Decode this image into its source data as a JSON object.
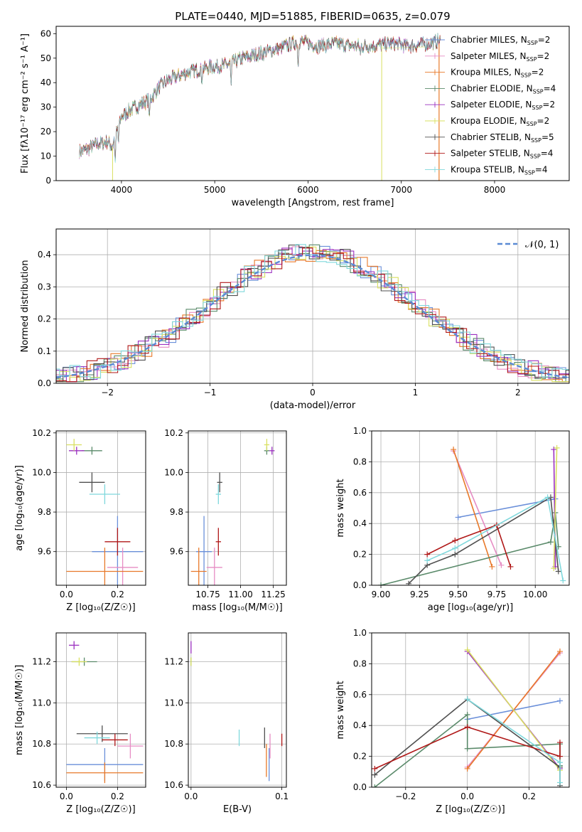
{
  "figure": {
    "title": "PLATE=0440, MJD=51885, FIBERID=0635, z=0.079"
  },
  "colors": {
    "Chabrier MILES": "#6a8fd9",
    "Salpeter MILES": "#e68cc4",
    "Kroupa MILES": "#e8792a",
    "Chabrier ELODIE": "#5a8a6a",
    "Salpeter ELODIE": "#9b30c0",
    "Kroupa ELODIE": "#d9e060",
    "Chabrier STELIB": "#505050",
    "Salpeter STELIB": "#b01818",
    "Kroupa STELIB": "#7fd8dc"
  },
  "chart_data": [
    {
      "id": "spectrum",
      "type": "line",
      "title": "PLATE=0440, MJD=51885, FIBERID=0635, z=0.079",
      "xlabel": "wavelength [Angstrom, rest frame]",
      "ylabel": "Flux [fλ10⁻¹⁷ erg cm⁻² s⁻¹ A⁻¹]",
      "xlim": [
        3300,
        8800
      ],
      "ylim": [
        0,
        63
      ],
      "xticks": [
        4000,
        5000,
        6000,
        7000,
        8000
      ],
      "yticks": [
        0,
        10,
        20,
        30,
        40,
        50,
        60
      ],
      "grid": false,
      "legend_position": "right",
      "spectrum_envelope": {
        "x": [
          3550,
          3650,
          3750,
          3850,
          3900,
          4000,
          4100,
          4200,
          4300,
          4400,
          4500,
          4700,
          4900,
          5100,
          5300,
          5500,
          5700,
          5900,
          6100,
          6300,
          6500,
          6700,
          6900,
          7100,
          7300,
          7400
        ],
        "y": [
          12,
          13,
          15,
          16,
          14,
          26,
          29,
          31,
          33,
          38,
          41,
          44,
          46,
          47,
          50,
          52,
          54,
          57,
          55,
          56,
          55,
          55,
          56,
          55,
          56,
          57
        ]
      },
      "legend": [
        {
          "label": "Chabrier MILES",
          "nssp": "2"
        },
        {
          "label": "Salpeter MILES",
          "nssp": "2"
        },
        {
          "label": "Kroupa MILES",
          "nssp": "2"
        },
        {
          "label": "Chabrier ELODIE",
          "nssp": "4"
        },
        {
          "label": "Salpeter ELODIE",
          "nssp": "2"
        },
        {
          "label": "Kroupa ELODIE",
          "nssp": "2"
        },
        {
          "label": "Chabrier STELIB",
          "nssp": "5"
        },
        {
          "label": "Salpeter STELIB",
          "nssp": "4"
        },
        {
          "label": "Kroupa STELIB",
          "nssp": "4"
        }
      ]
    },
    {
      "id": "residuals",
      "type": "line",
      "xlabel": "(data-model)/error",
      "ylabel": "Normed distribution",
      "xlim": [
        -2.5,
        2.5
      ],
      "ylim": [
        0,
        0.48
      ],
      "xticks": [
        -2,
        -1,
        0,
        1,
        2
      ],
      "yticks": [
        0.0,
        0.1,
        0.2,
        0.3,
        0.4
      ],
      "grid": true,
      "legend_position": "top-right",
      "gaussian_label": "𝒩(0, 1)"
    },
    {
      "id": "age_vs_Z",
      "type": "scatter",
      "xlabel": "Z [log₁₀(Z/Z☉)]",
      "ylabel": "age  [log₁₀(age/yr)]",
      "xlim": [
        -0.04,
        0.31
      ],
      "ylim": [
        9.43,
        10.21
      ],
      "xticks": [
        0.0,
        0.2
      ],
      "yticks": [
        9.6,
        9.8,
        10.0,
        10.2
      ],
      "grid": true,
      "points": [
        {
          "model": "Chabrier MILES",
          "x": 0.2,
          "xerr": 0.1,
          "y": 9.6,
          "yerr": 0.18
        },
        {
          "model": "Salpeter MILES",
          "x": 0.22,
          "xerr": 0.06,
          "y": 9.52,
          "yerr": 0.1
        },
        {
          "model": "Kroupa MILES",
          "x": 0.15,
          "xerr": 0.15,
          "y": 9.5,
          "yerr": 0.12
        },
        {
          "model": "Chabrier ELODIE",
          "x": 0.1,
          "xerr": 0.04,
          "y": 10.11,
          "yerr": 0.02
        },
        {
          "model": "Salpeter ELODIE",
          "x": 0.04,
          "xerr": 0.03,
          "y": 10.11,
          "yerr": 0.02
        },
        {
          "model": "Kroupa ELODIE",
          "x": 0.03,
          "xerr": 0.03,
          "y": 10.14,
          "yerr": 0.03
        },
        {
          "model": "Chabrier STELIB",
          "x": 0.1,
          "xerr": 0.05,
          "y": 9.95,
          "yerr": 0.05
        },
        {
          "model": "Salpeter STELIB",
          "x": 0.2,
          "xerr": 0.05,
          "y": 9.65,
          "yerr": 0.07
        },
        {
          "model": "Kroupa STELIB",
          "x": 0.15,
          "xerr": 0.06,
          "y": 9.89,
          "yerr": 0.05
        }
      ]
    },
    {
      "id": "age_vs_mass",
      "type": "scatter",
      "xlabel": "mass [log₁₀(M/M☉)]",
      "ylabel": "",
      "xlim": [
        10.6,
        11.35
      ],
      "ylim": [
        9.43,
        10.21
      ],
      "xticks": [
        10.75,
        11.0,
        11.25
      ],
      "yticks": [
        9.6,
        9.8,
        10.0,
        10.2
      ],
      "grid": true,
      "points": [
        {
          "model": "Chabrier MILES",
          "x": 10.72,
          "xerr": 0.06,
          "y": 9.6,
          "yerr": 0.18
        },
        {
          "model": "Salpeter MILES",
          "x": 10.8,
          "xerr": 0.06,
          "y": 9.52,
          "yerr": 0.1
        },
        {
          "model": "Kroupa MILES",
          "x": 10.68,
          "xerr": 0.06,
          "y": 9.5,
          "yerr": 0.12
        },
        {
          "model": "Chabrier ELODIE",
          "x": 11.2,
          "xerr": 0.02,
          "y": 10.11,
          "yerr": 0.02
        },
        {
          "model": "Salpeter ELODIE",
          "x": 11.24,
          "xerr": 0.02,
          "y": 10.11,
          "yerr": 0.02
        },
        {
          "model": "Kroupa ELODIE",
          "x": 11.2,
          "xerr": 0.02,
          "y": 10.14,
          "yerr": 0.03
        },
        {
          "model": "Chabrier STELIB",
          "x": 10.84,
          "xerr": 0.02,
          "y": 9.95,
          "yerr": 0.05
        },
        {
          "model": "Salpeter STELIB",
          "x": 10.83,
          "xerr": 0.02,
          "y": 9.65,
          "yerr": 0.07
        },
        {
          "model": "Kroupa STELIB",
          "x": 10.83,
          "xerr": 0.02,
          "y": 9.89,
          "yerr": 0.05
        }
      ]
    },
    {
      "id": "weight_vs_age",
      "type": "line",
      "xlabel": "age  [log₁₀(age/yr)]",
      "ylabel": "mass weight",
      "xlim": [
        8.94,
        10.22
      ],
      "ylim": [
        0,
        1
      ],
      "xticks": [
        9.0,
        9.25,
        9.5,
        9.75,
        10.0
      ],
      "yticks": [
        0.0,
        0.2,
        0.4,
        0.6,
        0.8,
        1.0
      ],
      "grid": true,
      "series": [
        {
          "model": "Chabrier MILES",
          "x": [
            9.5,
            10.13
          ],
          "y": [
            0.44,
            0.56
          ]
        },
        {
          "model": "Salpeter MILES",
          "x": [
            9.47,
            9.78
          ],
          "y": [
            0.87,
            0.13
          ]
        },
        {
          "model": "Kroupa MILES",
          "x": [
            9.47,
            9.72
          ],
          "y": [
            0.88,
            0.12
          ]
        },
        {
          "model": "Chabrier ELODIE",
          "x": [
            9.0,
            10.1,
            10.13,
            10.15
          ],
          "y": [
            0.0,
            0.28,
            0.47,
            0.25
          ]
        },
        {
          "model": "Salpeter ELODIE",
          "x": [
            10.12,
            10.13
          ],
          "y": [
            0.88,
            0.12
          ]
        },
        {
          "model": "Kroupa ELODIE",
          "x": [
            10.12,
            10.14
          ],
          "y": [
            0.11,
            0.89
          ]
        },
        {
          "model": "Chabrier STELIB",
          "x": [
            9.18,
            9.3,
            9.48,
            10.1,
            10.15
          ],
          "y": [
            0.01,
            0.13,
            0.2,
            0.57,
            0.09
          ]
        },
        {
          "model": "Salpeter STELIB",
          "x": [
            9.3,
            9.48,
            9.75,
            9.84
          ],
          "y": [
            0.2,
            0.29,
            0.39,
            0.12
          ]
        },
        {
          "model": "Kroupa STELIB",
          "x": [
            9.3,
            9.48,
            10.08,
            10.18
          ],
          "y": [
            0.16,
            0.24,
            0.57,
            0.03
          ]
        }
      ]
    },
    {
      "id": "mass_vs_Z",
      "type": "scatter",
      "xlabel": "Z [log₁₀(Z/Z☉)]",
      "ylabel": "mass [log₁₀(M/M☉)]",
      "xlim": [
        -0.04,
        0.31
      ],
      "ylim": [
        10.59,
        11.34
      ],
      "xticks": [
        0.0,
        0.2
      ],
      "yticks": [
        10.6,
        10.8,
        11.0,
        11.2
      ],
      "grid": true,
      "points": [
        {
          "model": "Chabrier MILES",
          "x": 0.15,
          "xerr": 0.15,
          "y": 10.7,
          "yerr": 0.08
        },
        {
          "model": "Salpeter MILES",
          "x": 0.25,
          "xerr": 0.05,
          "y": 10.79,
          "yerr": 0.06
        },
        {
          "model": "Kroupa MILES",
          "x": 0.15,
          "xerr": 0.15,
          "y": 10.66,
          "yerr": 0.05
        },
        {
          "model": "Chabrier ELODIE",
          "x": 0.07,
          "xerr": 0.05,
          "y": 11.2,
          "yerr": 0.02
        },
        {
          "model": "Salpeter ELODIE",
          "x": 0.03,
          "xerr": 0.02,
          "y": 11.28,
          "yerr": 0.02
        },
        {
          "model": "Kroupa ELODIE",
          "x": 0.05,
          "xerr": 0.03,
          "y": 11.2,
          "yerr": 0.02
        },
        {
          "model": "Chabrier STELIB",
          "x": 0.14,
          "xerr": 0.1,
          "y": 10.85,
          "yerr": 0.04
        },
        {
          "model": "Salpeter STELIB",
          "x": 0.19,
          "xerr": 0.05,
          "y": 10.82,
          "yerr": 0.03
        },
        {
          "model": "Kroupa STELIB",
          "x": 0.12,
          "xerr": 0.05,
          "y": 10.83,
          "yerr": 0.03
        }
      ]
    },
    {
      "id": "mass_vs_EBV",
      "type": "scatter",
      "xlabel": "E(B-V)",
      "ylabel": "",
      "xlim": [
        -0.003,
        0.105
      ],
      "ylim": [
        10.59,
        11.34
      ],
      "xticks": [
        0.0,
        0.1
      ],
      "yticks": [
        10.6,
        10.8,
        11.0,
        11.2
      ],
      "grid": true,
      "points": [
        {
          "model": "Chabrier MILES",
          "x": 0.086,
          "y": 10.7,
          "yerr": 0.08
        },
        {
          "model": "Salpeter MILES",
          "x": 0.087,
          "y": 10.79,
          "yerr": 0.06
        },
        {
          "model": "Kroupa MILES",
          "x": 0.083,
          "y": 10.72,
          "yerr": 0.08
        },
        {
          "model": "Chabrier ELODIE",
          "x": 0.0,
          "y": 11.2,
          "yerr": 0.02
        },
        {
          "model": "Salpeter ELODIE",
          "x": 0.0,
          "y": 11.27,
          "yerr": 0.03
        },
        {
          "model": "Kroupa ELODIE",
          "x": 0.0,
          "y": 11.2,
          "yerr": 0.02
        },
        {
          "model": "Chabrier STELIB",
          "x": 0.081,
          "y": 10.83,
          "yerr": 0.05
        },
        {
          "model": "Salpeter STELIB",
          "x": 0.1,
          "y": 10.82,
          "yerr": 0.03
        },
        {
          "model": "Kroupa STELIB",
          "x": 0.053,
          "y": 10.83,
          "yerr": 0.04
        }
      ]
    },
    {
      "id": "weight_vs_Z",
      "type": "line",
      "xlabel": "Z [log₁₀(Z/Z☉)]",
      "ylabel": "mass weight",
      "xlim": [
        -0.31,
        0.33
      ],
      "ylim": [
        0,
        1
      ],
      "xticks": [
        -0.2,
        0.0,
        0.2
      ],
      "yticks": [
        0.0,
        0.2,
        0.4,
        0.6,
        0.8,
        1.0
      ],
      "grid": true,
      "series": [
        {
          "model": "Chabrier MILES",
          "x": [
            0.0,
            0.3
          ],
          "y": [
            0.44,
            0.56
          ]
        },
        {
          "model": "Salpeter MILES",
          "x": [
            0.0,
            0.3
          ],
          "y": [
            0.13,
            0.87
          ]
        },
        {
          "model": "Kroupa MILES",
          "x": [
            0.0,
            0.3
          ],
          "y": [
            0.12,
            0.88
          ]
        },
        {
          "model": "Chabrier ELODIE",
          "x": [
            -0.3,
            0.0,
            0.0,
            0.3,
            0.3
          ],
          "y": [
            0.0,
            0.47,
            0.25,
            0.28,
            0.14
          ]
        },
        {
          "model": "Salpeter ELODIE",
          "x": [
            0.0,
            0.3
          ],
          "y": [
            0.88,
            0.12
          ]
        },
        {
          "model": "Kroupa ELODIE",
          "x": [
            0.0,
            0.3
          ],
          "y": [
            0.89,
            0.11
          ]
        },
        {
          "model": "Chabrier STELIB",
          "x": [
            -0.3,
            0.0,
            0.3,
            0.3
          ],
          "y": [
            0.08,
            0.57,
            0.13,
            0.01
          ]
        },
        {
          "model": "Salpeter STELIB",
          "x": [
            -0.3,
            0.0,
            0.3,
            0.3
          ],
          "y": [
            0.12,
            0.39,
            0.2,
            0.29
          ]
        },
        {
          "model": "Kroupa STELIB",
          "x": [
            0.0,
            0.3,
            0.3
          ],
          "y": [
            0.57,
            0.16,
            0.03
          ]
        }
      ]
    }
  ]
}
